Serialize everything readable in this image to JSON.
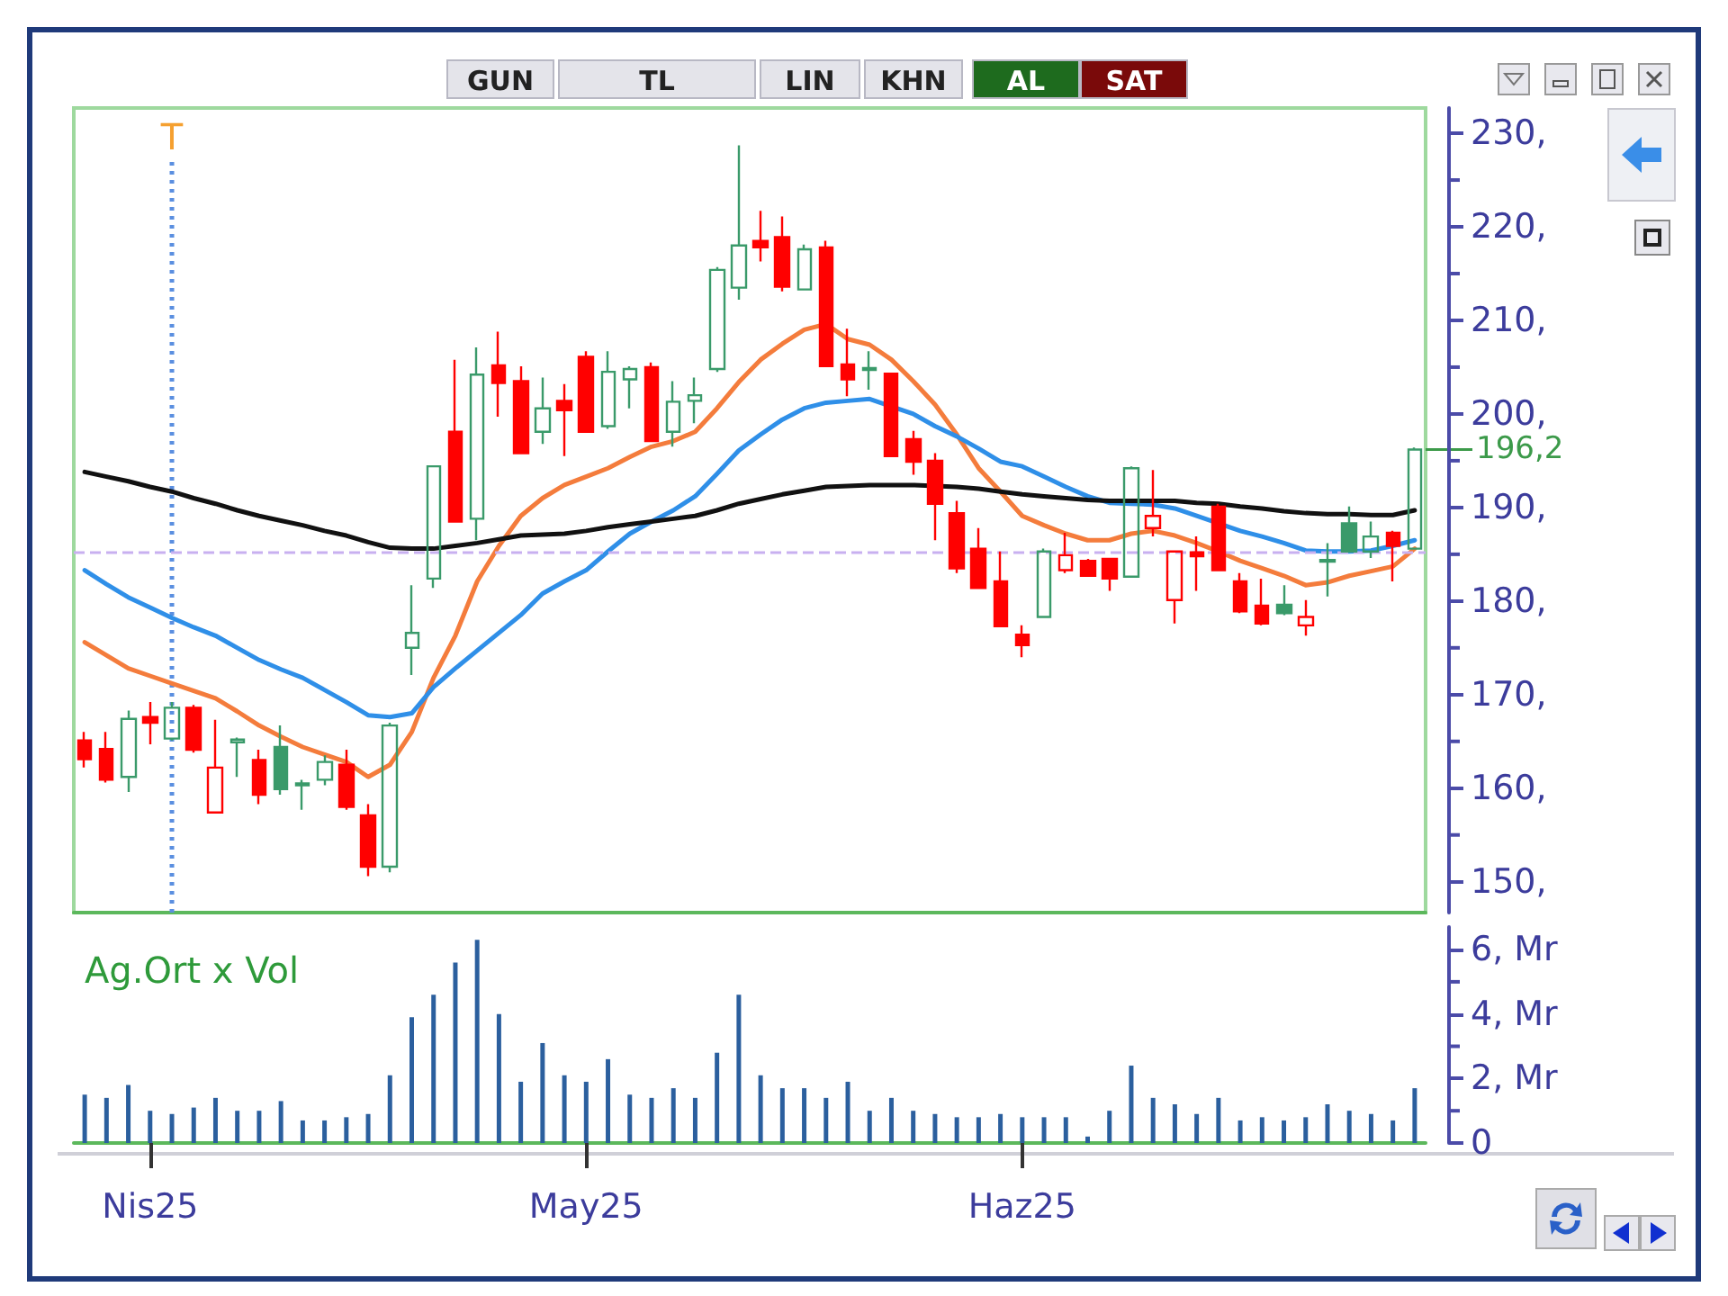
{
  "chart_data": [
    {
      "type": "candlestick",
      "ohlc": [
        [
          165.1,
          166.0,
          162.2,
          163.1
        ],
        [
          164.2,
          166.0,
          160.6,
          160.9
        ],
        [
          161.2,
          168.3,
          159.6,
          167.4
        ],
        [
          167.6,
          169.2,
          164.7,
          167.0
        ],
        [
          165.3,
          169.2,
          165.1,
          168.6
        ],
        [
          168.6,
          168.9,
          163.8,
          164.1
        ],
        [
          157.4,
          167.3,
          157.4,
          162.2
        ],
        [
          164.9,
          165.4,
          161.2,
          165.2
        ],
        [
          163.0,
          164.1,
          158.3,
          159.3
        ],
        [
          164.4,
          166.7,
          159.3,
          159.9
        ],
        [
          160.3,
          160.9,
          157.7,
          160.5
        ],
        [
          160.9,
          163.5,
          160.3,
          162.8
        ],
        [
          162.5,
          164.1,
          157.7,
          158.0
        ],
        [
          157.1,
          158.3,
          150.6,
          151.6
        ],
        [
          151.6,
          167.0,
          151.0,
          166.7
        ],
        [
          175.0,
          181.7,
          172.1,
          176.6
        ],
        [
          182.4,
          194.4,
          181.4,
          194.4
        ],
        [
          198.1,
          205.8,
          188.5,
          188.5
        ],
        [
          188.8,
          207.1,
          186.5,
          204.2
        ],
        [
          205.2,
          208.8,
          199.7,
          203.3
        ],
        [
          203.5,
          205.1,
          195.8,
          195.8
        ],
        [
          198.1,
          203.9,
          196.8,
          200.6
        ],
        [
          201.4,
          203.2,
          195.5,
          200.4
        ],
        [
          206.1,
          206.7,
          198.1,
          198.1
        ],
        [
          198.7,
          206.7,
          198.4,
          204.5
        ],
        [
          203.7,
          205.1,
          200.6,
          204.8
        ],
        [
          205.0,
          205.5,
          197.1,
          197.1
        ],
        [
          198.1,
          203.5,
          196.5,
          201.3
        ],
        [
          201.4,
          203.9,
          199.0,
          202.0
        ],
        [
          204.8,
          215.7,
          204.5,
          215.4
        ],
        [
          213.5,
          228.7,
          212.2,
          218.0
        ],
        [
          218.5,
          221.7,
          216.3,
          217.8
        ],
        [
          218.9,
          221.1,
          213.1,
          213.6
        ],
        [
          213.3,
          218.1,
          213.3,
          217.6
        ],
        [
          217.8,
          218.5,
          205.1,
          205.1
        ],
        [
          205.3,
          209.1,
          201.9,
          203.7
        ],
        [
          204.7,
          206.7,
          202.6,
          204.9
        ],
        [
          204.3,
          204.3,
          195.5,
          195.5
        ],
        [
          197.3,
          198.2,
          193.5,
          194.9
        ],
        [
          195.0,
          195.8,
          186.5,
          190.4
        ],
        [
          189.4,
          190.7,
          183.0,
          183.5
        ],
        [
          185.6,
          187.8,
          181.4,
          181.4
        ],
        [
          182.1,
          185.3,
          177.3,
          177.3
        ],
        [
          176.4,
          177.4,
          174.0,
          175.3
        ],
        [
          178.3,
          185.6,
          178.3,
          185.3
        ],
        [
          183.3,
          187.3,
          183.0,
          184.9
        ],
        [
          184.3,
          184.5,
          182.7,
          182.7
        ],
        [
          184.5,
          184.6,
          181.1,
          182.4
        ],
        [
          182.6,
          194.4,
          182.6,
          194.2
        ],
        [
          187.8,
          194.0,
          186.9,
          189.1
        ],
        [
          180.1,
          185.3,
          177.6,
          185.3
        ],
        [
          185.2,
          186.9,
          181.1,
          184.8
        ],
        [
          190.1,
          190.4,
          183.3,
          183.3
        ],
        [
          182.1,
          183.0,
          178.7,
          178.9
        ],
        [
          179.5,
          182.4,
          177.4,
          177.6
        ],
        [
          179.6,
          181.7,
          178.5,
          178.7
        ],
        [
          177.4,
          180.1,
          176.3,
          178.3
        ],
        [
          184.2,
          186.2,
          180.5,
          184.4
        ],
        [
          188.3,
          190.1,
          185.3,
          185.3
        ],
        [
          185.3,
          188.5,
          184.6,
          186.9
        ],
        [
          187.3,
          187.5,
          182.1,
          185.9
        ],
        [
          185.6,
          196.4,
          185.6,
          196.2
        ]
      ],
      "colors": [
        "#ff0000",
        "#ff0000",
        "#3a9a6a",
        "#ff0000",
        "#3a9a6a",
        "#ff0000",
        "#ff0000",
        "#3a9a6a",
        "#ff0000",
        "#3a9a6a",
        "#3a9a6a",
        "#3a9a6a",
        "#ff0000",
        "#ff0000",
        "#3a9a6a",
        "#3a9a6a",
        "#3a9a6a",
        "#ff0000",
        "#3a9a6a",
        "#ff0000",
        "#ff0000",
        "#3a9a6a",
        "#ff0000",
        "#ff0000",
        "#3a9a6a",
        "#3a9a6a",
        "#ff0000",
        "#3a9a6a",
        "#3a9a6a",
        "#3a9a6a",
        "#3a9a6a",
        "#ff0000",
        "#ff0000",
        "#3a9a6a",
        "#ff0000",
        "#ff0000",
        "#3a9a6a",
        "#ff0000",
        "#ff0000",
        "#ff0000",
        "#ff0000",
        "#ff0000",
        "#ff0000",
        "#ff0000",
        "#3a9a6a",
        "#ff0000",
        "#ff0000",
        "#ff0000",
        "#3a9a6a",
        "#ff0000",
        "#ff0000",
        "#ff0000",
        "#ff0000",
        "#ff0000",
        "#ff0000",
        "#3a9a6a",
        "#ff0000",
        "#3a9a6a",
        "#3a9a6a",
        "#3a9a6a",
        "#ff0000",
        "#3a9a6a"
      ],
      "series": [
        {
          "type": "line",
          "color": "#f47c3c",
          "values": [
            175.6,
            174.2,
            172.8,
            172.0,
            171.2,
            170.4,
            169.6,
            168.2,
            166.7,
            165.5,
            164.4,
            163.6,
            162.8,
            161.2,
            162.5,
            166.0,
            171.8,
            176.3,
            182.1,
            185.9,
            189.1,
            191.0,
            192.4,
            193.3,
            194.2,
            195.4,
            196.5,
            197.1,
            198.1,
            200.6,
            203.4,
            205.8,
            207.5,
            209.0,
            209.6,
            208.0,
            207.4,
            205.8,
            203.5,
            201.0,
            197.8,
            194.2,
            191.7,
            189.1,
            188.1,
            187.2,
            186.5,
            186.5,
            187.2,
            187.5,
            187.0,
            186.2,
            185.3,
            184.3,
            183.5,
            182.7,
            181.7,
            182.0,
            182.7,
            183.2,
            183.7,
            185.6
          ]
        },
        {
          "type": "line",
          "color": "#2f8fe8",
          "values": [
            183.3,
            181.8,
            180.4,
            179.3,
            178.2,
            177.2,
            176.3,
            175.0,
            173.7,
            172.7,
            171.8,
            170.5,
            169.2,
            167.8,
            167.6,
            168.0,
            170.8,
            172.8,
            174.7,
            176.6,
            178.5,
            180.8,
            182.1,
            183.3,
            185.3,
            187.2,
            188.5,
            189.7,
            191.2,
            193.6,
            196.1,
            197.8,
            199.4,
            200.6,
            201.2,
            201.4,
            201.6,
            null,
            200.0,
            198.7,
            197.6,
            196.3,
            194.9,
            194.4,
            193.3,
            192.2,
            191.2,
            190.5,
            190.4,
            190.3,
            189.9,
            189.1,
            null,
            187.5,
            186.9,
            186.2,
            185.4,
            185.3,
            185.3,
            185.4,
            185.9,
            186.5
          ]
        },
        {
          "type": "line",
          "color": "#111111",
          "values": [
            193.8,
            193.3,
            192.8,
            192.2,
            191.7,
            191.0,
            190.4,
            189.7,
            189.1,
            188.6,
            188.1,
            187.5,
            187.0,
            186.3,
            185.7,
            185.6,
            185.6,
            185.9,
            186.2,
            186.6,
            187.0,
            187.1,
            187.2,
            187.5,
            187.9,
            188.2,
            188.5,
            188.8,
            189.1,
            189.7,
            190.4,
            190.9,
            191.4,
            191.8,
            192.2,
            192.3,
            192.4,
            192.4,
            192.4,
            null,
            192.2,
            192.0,
            191.7,
            191.4,
            191.2,
            191.0,
            190.8,
            190.7,
            190.7,
            190.7,
            190.7,
            190.5,
            190.4,
            190.1,
            189.9,
            189.6,
            189.4,
            189.3,
            189.3,
            189.2,
            189.2,
            189.7
          ]
        }
      ],
      "ylim": [
        146.7,
        232.7
      ],
      "yticks": [
        {
          "value": 150,
          "label": "150,"
        },
        {
          "value": 160,
          "label": "160,"
        },
        {
          "value": 170,
          "label": "170,"
        },
        {
          "value": 180,
          "label": "180,"
        },
        {
          "value": 190,
          "label": "190,"
        },
        {
          "value": 200,
          "label": "200,"
        },
        {
          "value": 210,
          "label": "210,"
        },
        {
          "value": 220,
          "label": "220,"
        },
        {
          "value": 230,
          "label": "230,"
        }
      ],
      "tick_labels": "y",
      "marker": "none",
      "line_style": "solid",
      "ref_lines": [
        {
          "axis": "y",
          "value": 185.2,
          "label": null,
          "color": "#c8b0f0",
          "line_style": "dashed"
        }
      ],
      "annotations": [
        "196,2",
        "T",
        "GUN",
        "TL",
        "LIN",
        "KHN",
        "AL",
        "SAT"
      ]
    },
    {
      "type": "bar",
      "title": "Ag.Ort x Vol",
      "categories": [
        null,
        null,
        null,
        "Nis25",
        null,
        null,
        null,
        null,
        null,
        null,
        null,
        null,
        null,
        null,
        null,
        null,
        null,
        null,
        null,
        null,
        null,
        null,
        null,
        "May25",
        null,
        null,
        null,
        null,
        null,
        null,
        null,
        null,
        null,
        null,
        null,
        null,
        null,
        null,
        null,
        null,
        null,
        null,
        null,
        "Haz25",
        null,
        null,
        null,
        null,
        null,
        null,
        null,
        null,
        null,
        null,
        null,
        null,
        null,
        null,
        null,
        null,
        null,
        null
      ],
      "color": "#2b5f9e",
      "values": [
        1.5,
        1.4,
        1.8,
        1.0,
        0.9,
        1.1,
        1.4,
        1.0,
        1.0,
        1.3,
        0.7,
        0.7,
        0.8,
        0.9,
        2.1,
        3.9,
        4.6,
        5.6,
        6.3,
        4.0,
        1.9,
        3.1,
        2.1,
        1.9,
        2.6,
        1.5,
        1.4,
        1.7,
        1.4,
        2.8,
        4.6,
        2.1,
        1.7,
        1.7,
        1.4,
        1.9,
        1.0,
        1.4,
        1.0,
        0.9,
        0.8,
        0.8,
        0.9,
        0.8,
        0.8,
        0.8,
        0.2,
        1.0,
        2.4,
        1.4,
        1.2,
        0.9,
        1.4,
        0.7,
        0.8,
        0.7,
        0.8,
        1.2,
        1.0,
        0.9,
        0.7,
        1.7
      ],
      "ylim": [
        0,
        6.7
      ],
      "yticks": [
        {
          "value": 0,
          "label": "0"
        },
        {
          "value": 2,
          "label": "2, Mr"
        },
        {
          "value": 4,
          "label": "4, Mr"
        },
        {
          "value": 6,
          "label": "6, Mr"
        }
      ]
    }
  ]
}
